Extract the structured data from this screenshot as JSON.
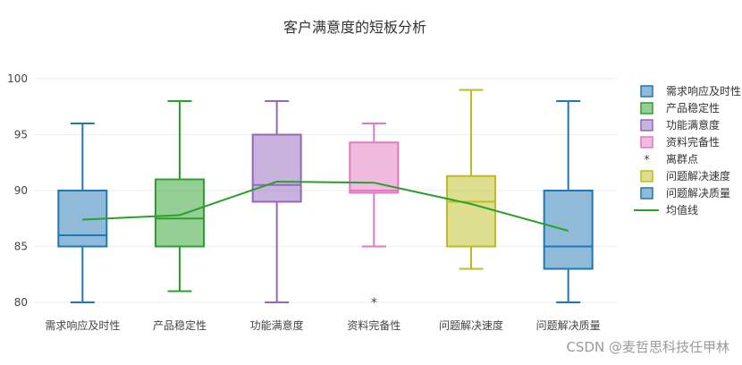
{
  "chart_data": {
    "type": "box",
    "title": "客户满意度的短板分析",
    "xlabel": "",
    "ylabel": "",
    "ylim": [
      80,
      100
    ],
    "yticks": [
      80,
      85,
      90,
      95,
      100
    ],
    "grid": true,
    "legend_position": "right",
    "categories": [
      "需求响应及时性",
      "产品稳定性",
      "功能满意度",
      "资料完备性",
      "问题解决速度",
      "问题解决质量"
    ],
    "series": [
      {
        "name": "需求响应及时性",
        "color": "#1f77b4",
        "min": 80,
        "q1": 85,
        "median": 86,
        "q3": 90,
        "max": 96,
        "outliers": []
      },
      {
        "name": "产品稳定性",
        "color": "#2ca02c",
        "min": 81,
        "q1": 85,
        "median": 87.5,
        "q3": 91,
        "max": 98,
        "outliers": []
      },
      {
        "name": "功能满意度",
        "color": "#9467bd",
        "min": 80,
        "q1": 89,
        "median": 90.5,
        "q3": 95,
        "max": 98,
        "outliers": []
      },
      {
        "name": "资料完备性",
        "color": "#e377c2",
        "min": 85,
        "q1": 89.8,
        "median": 90,
        "q3": 94.3,
        "max": 96,
        "outliers": [
          80
        ]
      },
      {
        "name": "问题解决速度",
        "color": "#bcbd22",
        "min": 83,
        "q1": 85,
        "median": 89,
        "q3": 91.3,
        "max": 99,
        "outliers": []
      },
      {
        "name": "问题解决质量",
        "color": "#1f77b4",
        "min": 80,
        "q1": 83,
        "median": 85,
        "q3": 90,
        "max": 98,
        "outliers": []
      }
    ],
    "mean_line": {
      "name": "均值线",
      "color": "#2ca02c",
      "values": [
        87.4,
        87.8,
        90.8,
        90.7,
        88.8,
        86.4
      ]
    },
    "outlier_legend": {
      "name": "离群点",
      "color": "#444444"
    }
  },
  "watermark": "CSDN @麦哲思科技任甲林"
}
